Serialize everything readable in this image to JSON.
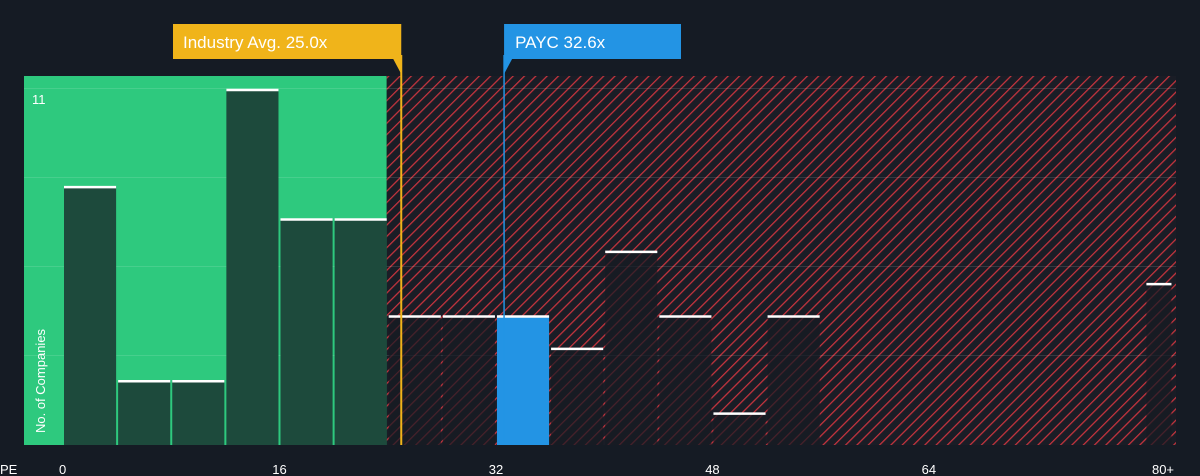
{
  "chart_data": {
    "type": "bar",
    "xlabel": "PE",
    "ylabel": "No. of Companies",
    "x_ticks": [
      {
        "value": 0,
        "label": "0"
      },
      {
        "value": 16,
        "label": "16"
      },
      {
        "value": 32,
        "label": "32"
      },
      {
        "value": 48,
        "label": "48"
      },
      {
        "value": 64,
        "label": "64"
      },
      {
        "value": 80,
        "label": "80+"
      }
    ],
    "xlim": [
      0,
      82
    ],
    "ylim": [
      0,
      11
    ],
    "y_max_label": "11",
    "bin_width": 4,
    "bins": [
      {
        "x0": 0,
        "x1": 4,
        "value": 8
      },
      {
        "x0": 4,
        "x1": 8,
        "value": 2
      },
      {
        "x0": 8,
        "x1": 12,
        "value": 2
      },
      {
        "x0": 12,
        "x1": 16,
        "value": 11
      },
      {
        "x0": 16,
        "x1": 20,
        "value": 7
      },
      {
        "x0": 20,
        "x1": 24,
        "value": 7
      },
      {
        "x0": 24,
        "x1": 28,
        "value": 4
      },
      {
        "x0": 28,
        "x1": 32,
        "value": 4
      },
      {
        "x0": 32,
        "x1": 36,
        "value": 4,
        "highlight": true
      },
      {
        "x0": 36,
        "x1": 40,
        "value": 3
      },
      {
        "x0": 40,
        "x1": 44,
        "value": 6
      },
      {
        "x0": 44,
        "x1": 48,
        "value": 4
      },
      {
        "x0": 48,
        "x1": 52,
        "value": 1
      },
      {
        "x0": 52,
        "x1": 56,
        "value": 4
      },
      {
        "x0": 80,
        "x1": 82,
        "value": 5
      }
    ],
    "industry_avg": {
      "value": 25.0,
      "label": "Industry Avg. 25.0x",
      "color": "#f0b41a"
    },
    "company": {
      "value": 32.6,
      "label": "PAYC 32.6x",
      "color": "#2394e4"
    },
    "colors": {
      "background": "#151b24",
      "below_avg_zone": "#2ec97e",
      "bar_fill": "#1d4a3c",
      "above_zone_hatch": "#c8343e",
      "bar_cap": "#ffffff",
      "highlight_bar": "#2394e4"
    }
  }
}
